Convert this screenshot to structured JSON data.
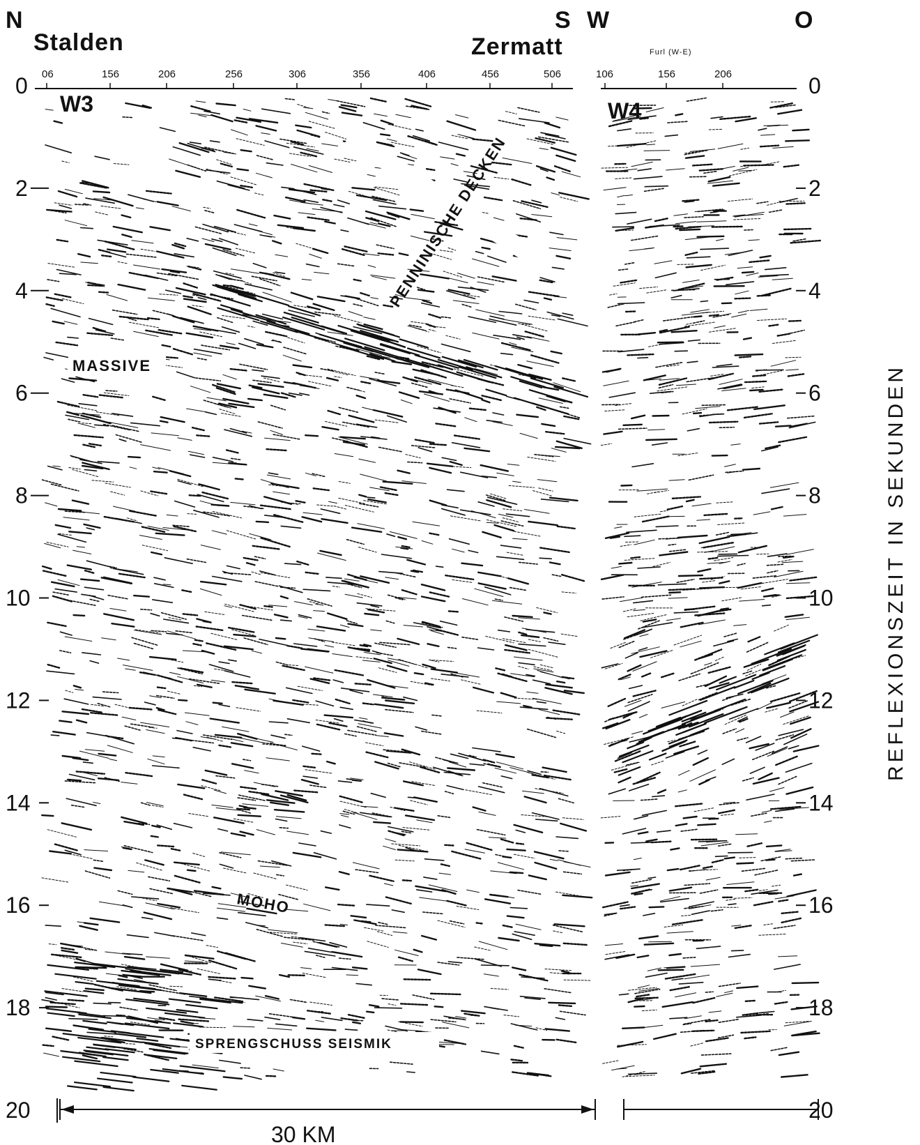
{
  "compass": {
    "left_north": "N",
    "left_south": "S",
    "right_west": "W",
    "right_east": "O"
  },
  "places": {
    "left": "Stalden",
    "right": "Zermatt"
  },
  "panels": [
    {
      "id": "W3",
      "label": "W3",
      "top_ticks": [
        "06",
        "156",
        "206",
        "256",
        "306",
        "356",
        "406",
        "456",
        "506"
      ]
    },
    {
      "id": "W4",
      "label": "W4",
      "header": "Furl (W-E)",
      "top_ticks": [
        "106",
        "156",
        "206"
      ]
    }
  ],
  "y_axis": {
    "title": "REFLEXIONSZEIT IN SEKUNDEN",
    "unit": "s",
    "range": [
      0,
      20
    ],
    "left_ticks": [
      "0",
      "2",
      "4",
      "6",
      "8",
      "10",
      "12",
      "14",
      "16",
      "18",
      "20"
    ],
    "right_ticks": [
      "0",
      "2",
      "4",
      "6",
      "8",
      "10",
      "12",
      "14",
      "16",
      "18",
      "20"
    ]
  },
  "annotations": {
    "penninic": "PENNINISCHE DECKEN",
    "massive": "MASSIVE",
    "moho": "MOHO",
    "sprengschuss": "SPRENGSCHUSS SEISMIK"
  },
  "scale_bar": {
    "label": "30 KM"
  }
}
